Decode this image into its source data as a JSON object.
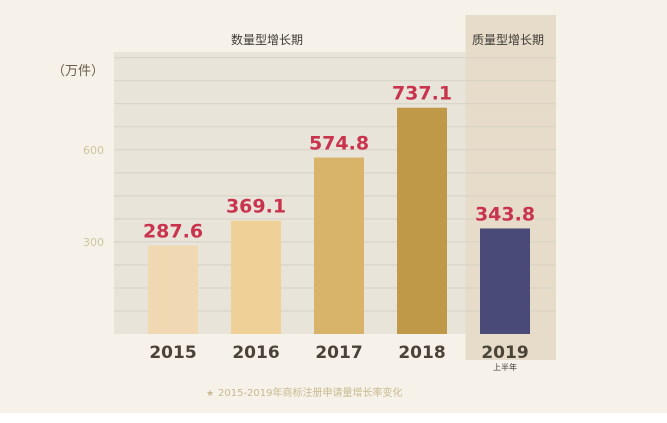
{
  "chart_data": {
    "type": "bar",
    "unit_label": "（万件）",
    "categories": [
      "2015",
      "2016",
      "2017",
      "2018",
      "2019"
    ],
    "category_sublabels": [
      "",
      "",
      "",
      "",
      "上半年"
    ],
    "values": [
      287.6,
      369.1,
      574.8,
      737.1,
      343.8
    ],
    "value_labels": [
      "287.6",
      "369.1",
      "574.8",
      "737.1",
      "343.8"
    ],
    "bar_colors": [
      "#f0d9b2",
      "#efd097",
      "#d7b46a",
      "#bf9848",
      "#4a4a78"
    ],
    "y_ticks": [
      300,
      600
    ],
    "ylim": [
      0,
      900
    ],
    "grid": true,
    "regions": [
      {
        "label": "数量型增长期",
        "from_category": 0,
        "to_category": 3
      },
      {
        "label": "质量型增长期",
        "from_category": 4,
        "to_category": 4
      }
    ],
    "caption_marker": "★",
    "caption": "2015-2019年商标注册申请量增长率变化"
  },
  "colors": {
    "page_bg": "#f6f2ea",
    "plot_bg": "#e8e4da",
    "highlight_bg": "#e7dcc9",
    "grid": "#d6d1c5",
    "value_label": "#c9334d",
    "category_label": "#4a4338",
    "tick_label": "#d0c49c",
    "unit_label": "#6a5c48",
    "caption": "#c9b98f"
  }
}
